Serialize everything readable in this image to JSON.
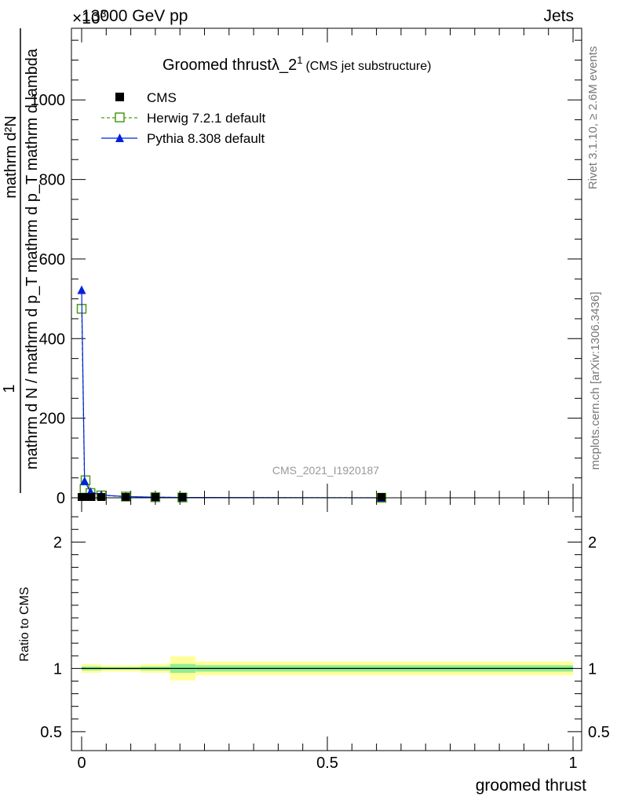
{
  "header": {
    "left": "13000 GeV pp",
    "right": "Jets",
    "multiplier": "×10",
    "multiplier_exp": "3"
  },
  "side_labels": {
    "rivet": "Rivet 3.1.10, ≥ 2.6M events",
    "mcplots": "mcplots.cern.ch [arXiv:1306.3436]"
  },
  "watermark": "CMS_2021_I1920187",
  "colors": {
    "cms": "#000000",
    "herwig": "#4a9a1a",
    "pythia": "#0022dd",
    "band_yellow": "#ffff99",
    "band_green": "#90ee90"
  },
  "chart_data": [
    {
      "type": "line",
      "title": "Groomed thrustλ_2",
      "title_sup": "1",
      "title_sub": "(CMS jet substructure)",
      "ylabel_numerator": "mathrm d²N",
      "ylabel_denominator": "mathrm d N / mathrm d p_T mathrm d p_T mathrm d lambda",
      "ylabel_one": "1",
      "ylim": [
        0,
        1180
      ],
      "yticks": [
        0,
        200,
        400,
        600,
        800,
        1000
      ],
      "ytick_labels": [
        "0",
        "200",
        "400",
        "600",
        "800",
        "1000"
      ],
      "xlim": [
        -0.02,
        1.0
      ],
      "legend_position": "top-left",
      "series": [
        {
          "name": "CMS",
          "marker": "square-filled",
          "x": [
            0.0,
            0.01,
            0.02,
            0.04,
            0.09,
            0.15,
            0.205,
            0.61
          ],
          "y": [
            0,
            0,
            0,
            0,
            0,
            0,
            0,
            0
          ]
        },
        {
          "name": "Herwig 7.2.1 default",
          "marker": "square-open",
          "x": [
            0.0,
            0.006,
            0.008,
            0.018,
            0.04,
            0.09,
            0.15,
            0.205,
            0.61
          ],
          "y": [
            475,
            22,
            44,
            12,
            6,
            3,
            1.5,
            0.8,
            0.05
          ]
        },
        {
          "name": "Pythia 8.308 default",
          "marker": "triangle-filled",
          "x": [
            0.0,
            0.006,
            0.018,
            0.04,
            0.09,
            0.15,
            0.205,
            0.61
          ],
          "y": [
            522,
            42,
            15,
            7,
            3,
            1.5,
            0.8,
            0.05
          ]
        }
      ]
    },
    {
      "type": "line",
      "ylabel": "Ratio to CMS",
      "xlabel": "groomed thrust",
      "ylim": [
        0.35,
        2.35
      ],
      "yticks": [
        0.5,
        1,
        2
      ],
      "ytick_labels": [
        "0.5",
        "1",
        "2"
      ],
      "xlim": [
        -0.02,
        1.0
      ],
      "xticks": [
        0,
        0.5,
        1
      ],
      "xtick_labels": [
        "0",
        "0.5",
        "1"
      ],
      "reference": 1,
      "bands": [
        {
          "x0": 0.0,
          "x1": 0.04,
          "yellow": [
            0.965,
            1.035
          ],
          "green": [
            0.985,
            1.015
          ]
        },
        {
          "x0": 0.04,
          "x1": 0.12,
          "yellow": [
            0.975,
            1.025
          ],
          "green": [
            0.99,
            1.01
          ]
        },
        {
          "x0": 0.12,
          "x1": 0.18,
          "yellow": [
            0.965,
            1.035
          ],
          "green": [
            0.985,
            1.015
          ]
        },
        {
          "x0": 0.18,
          "x1": 0.232,
          "yellow": [
            0.905,
            1.095
          ],
          "green": [
            0.965,
            1.035
          ]
        },
        {
          "x0": 0.232,
          "x1": 1.0,
          "yellow": [
            0.945,
            1.055
          ],
          "green": [
            0.975,
            1.025
          ]
        }
      ]
    }
  ]
}
